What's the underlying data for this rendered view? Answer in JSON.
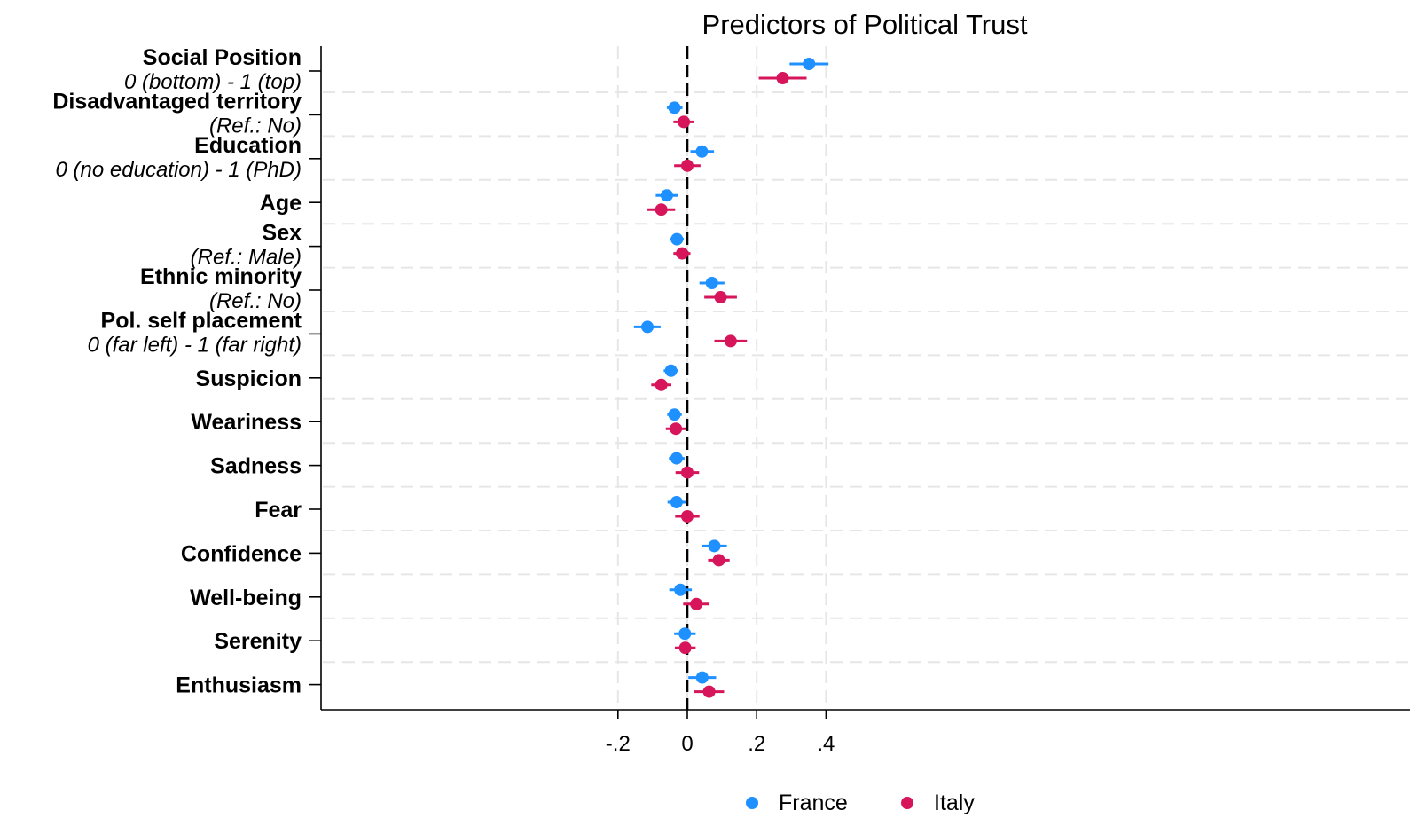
{
  "chart_data": {
    "type": "scatter",
    "title": "Predictors of Political Trust",
    "xlim": [
      -0.21,
      0.42
    ],
    "x_ticks": [
      {
        "value": -0.2,
        "label": "-.2"
      },
      {
        "value": 0,
        "label": "0"
      },
      {
        "value": 0.2,
        "label": ".2"
      },
      {
        "value": 0.4,
        "label": ".4"
      }
    ],
    "reference_line": 0,
    "grid": true,
    "legend_position": "bottom",
    "colors": {
      "France": "#1e90ff",
      "Italy": "#d6155a"
    },
    "categories": [
      {
        "label": "Social Position",
        "sublabel": "0 (bottom) - 1 (top)"
      },
      {
        "label": "Disadvantaged territory",
        "sublabel": "(Ref.: No)"
      },
      {
        "label": "Education",
        "sublabel": "0 (no education) - 1 (PhD)"
      },
      {
        "label": "Age",
        "sublabel": ""
      },
      {
        "label": "Sex",
        "sublabel": "(Ref.: Male)"
      },
      {
        "label": "Ethnic minority",
        "sublabel": "(Ref.: No)"
      },
      {
        "label": "Pol. self placement",
        "sublabel": "0 (far left) - 1 (far right)"
      },
      {
        "label": "Suspicion",
        "sublabel": ""
      },
      {
        "label": "Weariness",
        "sublabel": ""
      },
      {
        "label": "Sadness",
        "sublabel": ""
      },
      {
        "label": "Fear",
        "sublabel": ""
      },
      {
        "label": "Confidence",
        "sublabel": ""
      },
      {
        "label": "Well-being",
        "sublabel": ""
      },
      {
        "label": "Serenity",
        "sublabel": ""
      },
      {
        "label": "Enthusiasm",
        "sublabel": ""
      }
    ],
    "series": [
      {
        "name": "France",
        "estimates": [
          0.351,
          -0.037,
          0.042,
          -0.059,
          -0.03,
          0.071,
          -0.115,
          -0.047,
          -0.037,
          -0.031,
          -0.031,
          0.078,
          -0.02,
          -0.007,
          0.043
        ],
        "ci_low": [
          0.295,
          -0.059,
          0.009,
          -0.091,
          -0.05,
          0.035,
          -0.154,
          -0.068,
          -0.058,
          -0.053,
          -0.057,
          0.041,
          -0.052,
          -0.038,
          0.003
        ],
        "ci_high": [
          0.407,
          -0.014,
          0.077,
          -0.027,
          -0.01,
          0.107,
          -0.077,
          -0.026,
          -0.016,
          -0.008,
          -0.004,
          0.114,
          0.013,
          0.024,
          0.083
        ]
      },
      {
        "name": "Italy",
        "estimates": [
          0.275,
          -0.01,
          0.0,
          -0.075,
          -0.015,
          0.096,
          0.125,
          -0.075,
          -0.033,
          0.0,
          0.0,
          0.091,
          0.026,
          -0.006,
          0.063
        ],
        "ci_low": [
          0.206,
          -0.04,
          -0.038,
          -0.115,
          -0.04,
          0.049,
          0.078,
          -0.104,
          -0.062,
          -0.034,
          -0.035,
          0.06,
          -0.012,
          -0.036,
          0.02
        ],
        "ci_high": [
          0.344,
          0.02,
          0.038,
          -0.035,
          0.009,
          0.143,
          0.172,
          -0.046,
          -0.005,
          0.034,
          0.035,
          0.122,
          0.064,
          0.024,
          0.106
        ]
      }
    ]
  }
}
